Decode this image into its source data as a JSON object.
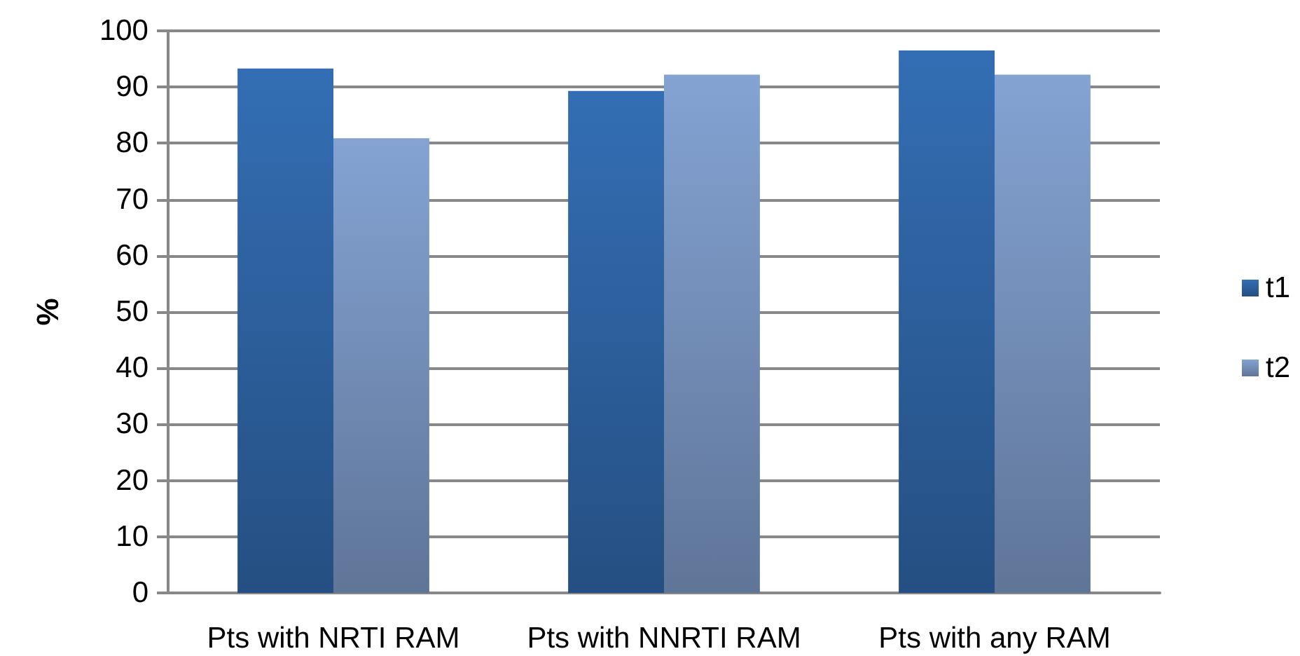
{
  "chart_data": {
    "type": "bar",
    "ylabel": "%",
    "categories": [
      "Pts with NRTI RAM",
      "Pts with NNRTI RAM",
      "Pts with any RAM"
    ],
    "series": [
      {
        "name": "t1",
        "color": "#336eb4",
        "values": [
          93.3,
          89.3,
          96.5
        ]
      },
      {
        "name": "t2",
        "color": "#84a3d3",
        "values": [
          80.9,
          92.2,
          92.2
        ]
      }
    ],
    "ylim": [
      0,
      100
    ],
    "yticks": [
      0,
      10,
      20,
      30,
      40,
      50,
      60,
      70,
      80,
      90,
      100
    ],
    "grid": "y",
    "legend": "right"
  }
}
